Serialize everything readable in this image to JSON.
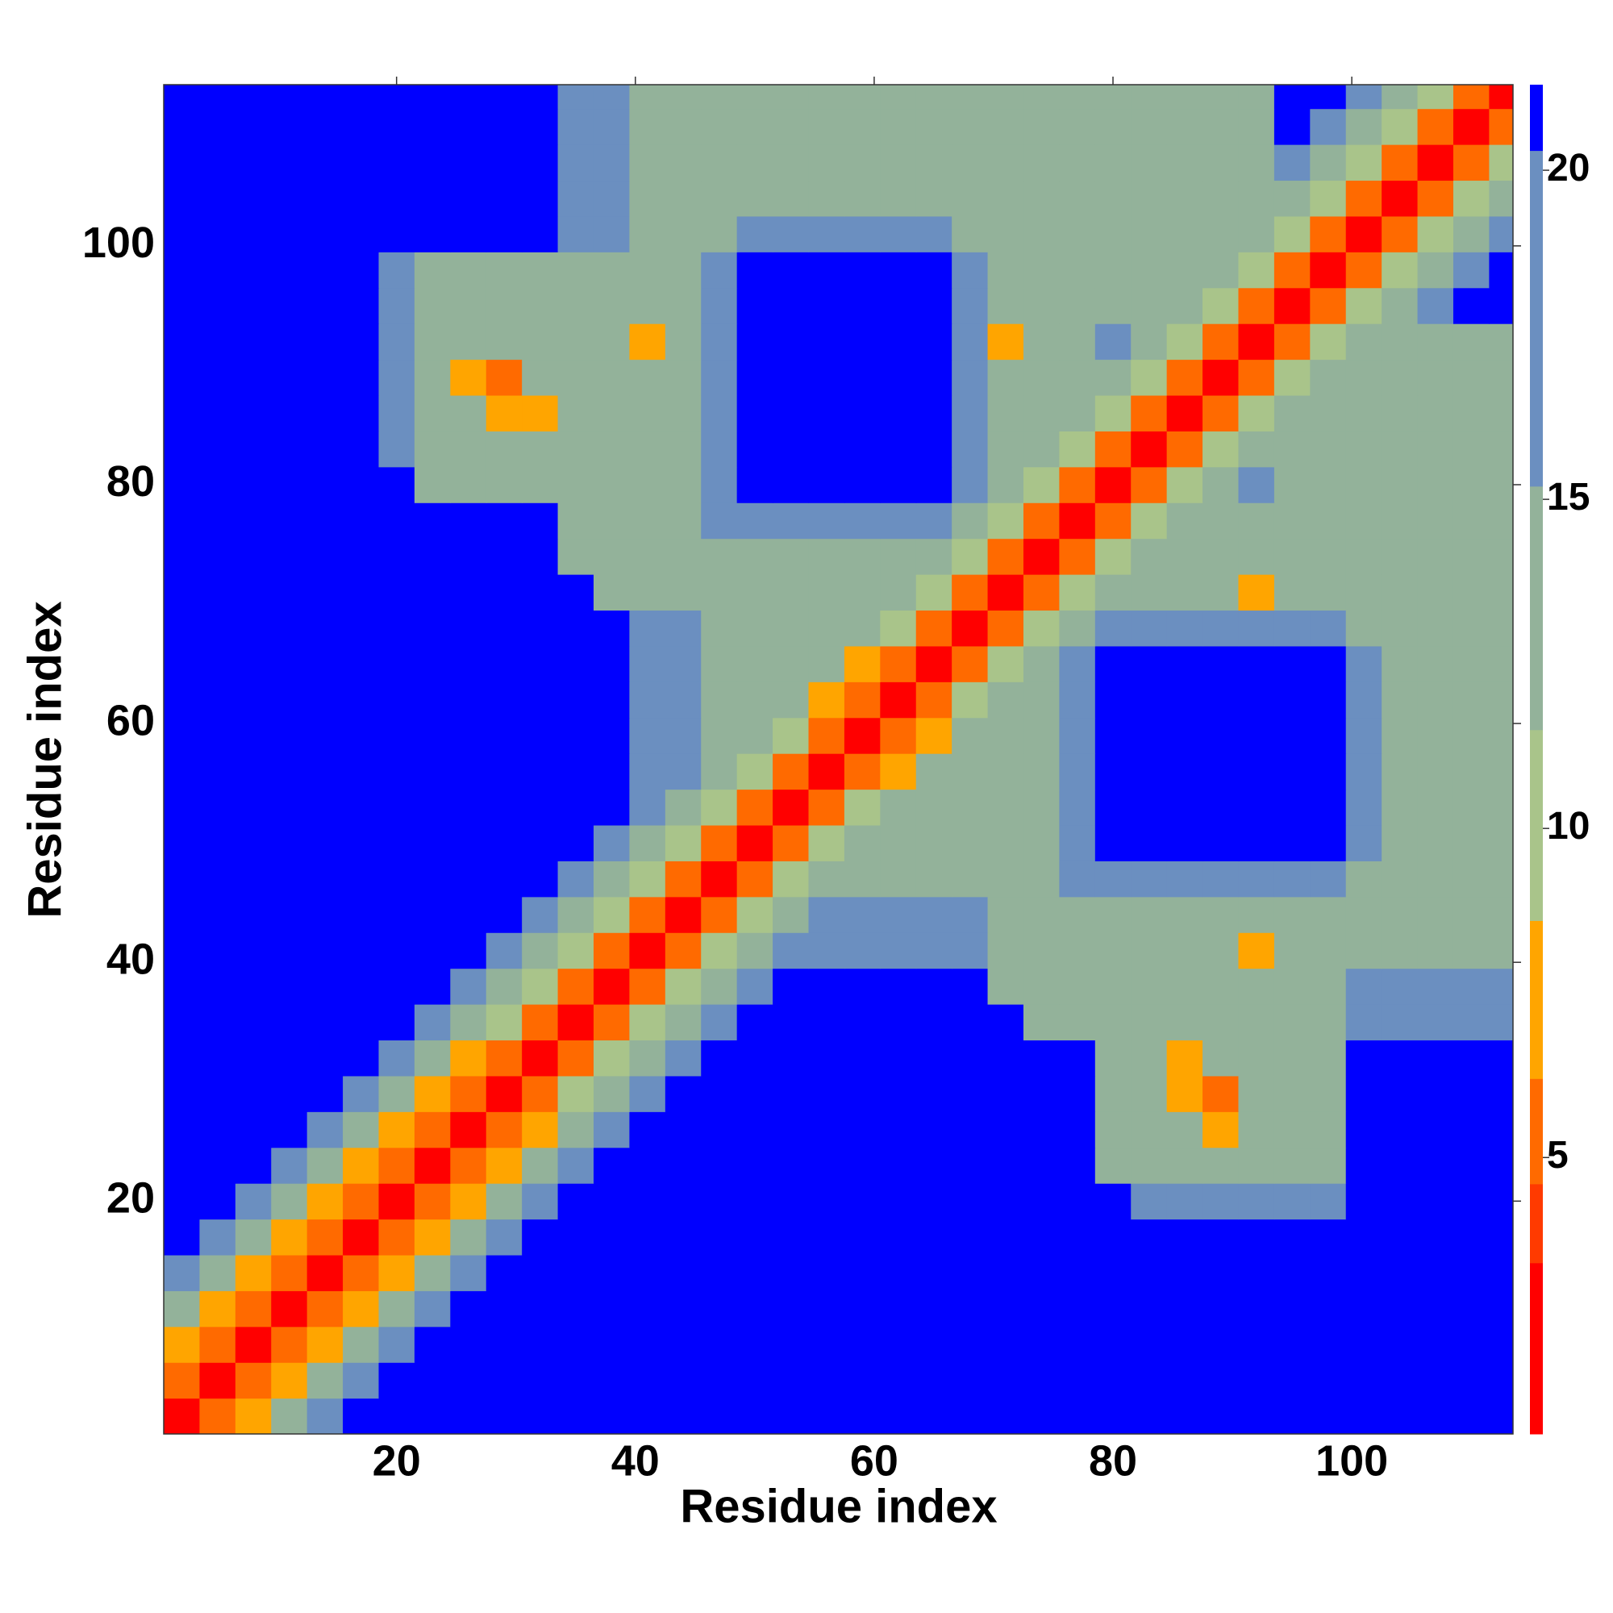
{
  "chart_data": {
    "type": "heatmap",
    "xlabel": "Residue index",
    "ylabel": "Residue index",
    "xlim": [
      0.5,
      113.5
    ],
    "ylim": [
      0.5,
      113.5
    ],
    "xticks": [
      20,
      40,
      60,
      80,
      100
    ],
    "yticks": [
      20,
      40,
      60,
      80,
      100
    ],
    "clim": [
      0.8,
      21.3
    ],
    "colorbar_ticks": [
      5,
      10,
      15,
      20
    ],
    "colorscale": [
      {
        "value": 0.8,
        "color": "#ff0000"
      },
      {
        "value": 3.4,
        "color": "#ff3a00"
      },
      {
        "value": 4.6,
        "color": "#ff6a00"
      },
      {
        "value": 6.2,
        "color": "#ffa500"
      },
      {
        "value": 8.6,
        "color": "#a9c48a"
      },
      {
        "value": 11.5,
        "color": "#93b29a"
      },
      {
        "value": 15.2,
        "color": "#6b8fc0"
      },
      {
        "value": 20.3,
        "color": "#0000ff"
      }
    ],
    "x": [
      2,
      5,
      8,
      11,
      14,
      17,
      20,
      23,
      26,
      29,
      32,
      35,
      38,
      41,
      44,
      47,
      50,
      53,
      56,
      59,
      62,
      65,
      68,
      71,
      74,
      77,
      80,
      83,
      86,
      89,
      92,
      95,
      98,
      101,
      104,
      107,
      110,
      113
    ],
    "y": [
      2,
      5,
      8,
      11,
      14,
      17,
      20,
      23,
      26,
      29,
      32,
      35,
      38,
      41,
      44,
      47,
      50,
      53,
      56,
      59,
      62,
      65,
      68,
      71,
      74,
      77,
      80,
      83,
      86,
      89,
      92,
      95,
      98,
      101,
      104,
      107,
      110,
      113
    ],
    "z": [
      [
        2,
        5,
        8.5,
        12,
        16,
        21,
        21,
        21,
        21,
        21,
        21,
        21,
        21,
        21,
        21,
        21,
        21,
        21,
        21,
        21,
        21,
        21,
        21,
        21,
        21,
        21,
        21,
        21,
        21,
        21,
        21,
        21,
        21,
        21,
        21,
        21,
        21,
        21
      ],
      [
        5,
        2,
        5,
        8.5,
        12,
        16,
        21,
        21,
        21,
        21,
        21,
        21,
        21,
        21,
        21,
        21,
        21,
        21,
        21,
        21,
        21,
        21,
        21,
        21,
        21,
        21,
        21,
        21,
        21,
        21,
        21,
        21,
        21,
        21,
        21,
        21,
        21,
        21
      ],
      [
        8.5,
        5,
        2,
        5,
        8.5,
        12,
        16,
        21,
        21,
        21,
        21,
        21,
        21,
        21,
        21,
        21,
        21,
        21,
        21,
        21,
        21,
        21,
        21,
        21,
        21,
        21,
        21,
        21,
        21,
        21,
        21,
        21,
        21,
        21,
        21,
        21,
        21,
        21
      ],
      [
        12,
        8.5,
        5,
        2,
        5,
        8.5,
        12,
        16,
        21,
        21,
        21,
        21,
        21,
        21,
        21,
        21,
        21,
        21,
        21,
        21,
        21,
        21,
        21,
        21,
        21,
        21,
        21,
        21,
        21,
        21,
        21,
        21,
        21,
        21,
        21,
        21,
        21,
        21
      ],
      [
        16,
        12,
        8.5,
        5,
        2,
        5,
        8.5,
        12,
        16,
        21,
        21,
        21,
        21,
        21,
        21,
        21,
        21,
        21,
        21,
        21,
        21,
        21,
        21,
        21,
        21,
        21,
        21,
        21,
        21,
        21,
        21,
        21,
        21,
        21,
        21,
        21,
        21,
        21
      ],
      [
        21,
        16,
        12,
        8.5,
        5,
        2,
        5,
        8.5,
        12,
        16,
        21,
        21,
        21,
        21,
        21,
        21,
        21,
        21,
        21,
        21,
        21,
        21,
        21,
        21,
        21,
        21,
        21,
        21,
        21,
        21,
        21,
        21,
        21,
        21,
        21,
        21,
        21,
        21
      ],
      [
        21,
        21,
        16,
        12,
        8.5,
        5,
        2,
        5,
        8.5,
        12,
        16,
        21,
        21,
        21,
        21,
        21,
        21,
        21,
        21,
        21,
        21,
        21,
        21,
        21,
        21,
        21,
        21,
        17,
        17,
        17,
        17,
        17,
        17,
        21,
        21,
        21,
        21,
        21
      ],
      [
        21,
        21,
        21,
        16,
        12,
        8.5,
        5,
        2,
        5,
        8.5,
        12,
        16,
        21,
        21,
        21,
        21,
        21,
        21,
        21,
        21,
        21,
        21,
        21,
        21,
        21,
        21,
        13,
        13,
        13,
        13,
        13,
        13,
        13,
        21,
        21,
        21,
        21,
        21
      ],
      [
        21,
        21,
        21,
        21,
        16,
        12,
        8.5,
        5,
        2,
        5,
        8.5,
        12,
        16,
        21,
        21,
        21,
        21,
        21,
        21,
        21,
        21,
        21,
        21,
        21,
        21,
        21,
        13,
        13,
        13,
        8,
        13,
        13,
        13,
        21,
        21,
        21,
        21,
        21
      ],
      [
        21,
        21,
        21,
        21,
        21,
        16,
        12,
        8.5,
        5,
        2,
        6,
        10,
        13,
        16,
        21,
        21,
        21,
        21,
        21,
        21,
        21,
        21,
        21,
        21,
        21,
        21,
        13,
        13,
        7,
        6,
        13,
        13,
        13,
        21,
        21,
        21,
        21,
        21
      ],
      [
        21,
        21,
        21,
        21,
        21,
        21,
        16,
        12,
        8.5,
        6,
        2,
        6,
        10,
        13,
        16,
        21,
        21,
        21,
        21,
        21,
        21,
        21,
        21,
        21,
        21,
        21,
        14,
        14,
        8,
        14,
        14,
        14,
        14,
        21,
        21,
        21,
        21,
        21
      ],
      [
        21,
        21,
        21,
        21,
        21,
        21,
        21,
        16,
        12,
        10,
        6,
        2,
        6,
        10,
        13,
        16,
        21,
        21,
        21,
        21,
        21,
        21,
        21,
        21,
        15,
        15,
        15,
        15,
        15,
        15,
        15,
        15,
        15,
        18,
        18,
        18,
        18,
        18
      ],
      [
        21,
        21,
        21,
        21,
        21,
        21,
        21,
        21,
        16,
        13,
        10,
        6,
        2,
        6,
        10,
        13,
        16,
        21,
        21,
        21,
        21,
        21,
        21,
        14,
        14,
        14,
        14,
        14,
        14,
        14,
        14,
        14,
        14,
        18,
        18,
        18,
        18,
        18
      ],
      [
        21,
        21,
        21,
        21,
        21,
        21,
        21,
        21,
        21,
        16,
        13,
        10,
        6,
        2,
        6,
        10,
        13,
        16,
        17,
        17,
        17,
        17,
        17,
        13,
        13,
        13,
        13,
        13,
        13,
        13,
        8,
        13,
        13,
        14,
        14,
        14,
        14,
        14
      ],
      [
        21,
        21,
        21,
        21,
        21,
        21,
        21,
        21,
        21,
        21,
        16,
        13,
        10,
        6,
        2,
        6,
        10,
        13,
        16,
        17,
        17,
        17,
        17,
        13,
        13,
        13,
        13,
        13,
        13,
        13,
        13,
        13,
        13,
        14,
        14,
        14,
        14,
        14
      ],
      [
        21,
        21,
        21,
        21,
        21,
        21,
        21,
        21,
        21,
        21,
        21,
        16,
        13,
        10,
        6,
        2,
        6,
        10,
        13,
        15,
        15,
        15,
        15,
        15,
        15,
        18,
        18,
        18,
        18,
        18,
        18,
        18,
        18,
        14,
        14,
        14,
        14,
        14
      ],
      [
        21,
        21,
        21,
        21,
        21,
        21,
        21,
        21,
        21,
        21,
        21,
        21,
        16,
        13,
        10,
        6,
        2,
        6,
        10,
        13,
        15,
        15,
        15,
        15,
        15,
        18,
        21,
        21,
        21,
        21,
        21,
        21,
        21,
        16,
        14,
        14,
        14,
        14
      ],
      [
        21,
        21,
        21,
        21,
        21,
        21,
        21,
        21,
        21,
        21,
        21,
        21,
        21,
        16,
        13,
        10,
        6,
        2,
        6,
        10,
        13,
        15,
        15,
        15,
        15,
        18,
        21,
        21,
        21,
        21,
        21,
        21,
        21,
        16,
        14,
        14,
        14,
        14
      ],
      [
        21,
        21,
        21,
        21,
        21,
        21,
        21,
        21,
        21,
        21,
        21,
        21,
        21,
        17,
        16,
        13,
        10,
        6,
        2,
        6,
        7,
        13,
        15,
        15,
        15,
        18,
        21,
        21,
        21,
        21,
        21,
        21,
        21,
        16,
        14,
        14,
        14,
        14
      ],
      [
        21,
        21,
        21,
        21,
        21,
        21,
        21,
        21,
        21,
        21,
        21,
        21,
        21,
        17,
        17,
        15,
        13,
        10,
        6,
        2,
        6,
        7,
        13,
        15,
        15,
        18,
        21,
        21,
        21,
        21,
        21,
        21,
        21,
        16,
        14,
        14,
        14,
        14
      ],
      [
        21,
        21,
        21,
        21,
        21,
        21,
        21,
        21,
        21,
        21,
        21,
        21,
        21,
        17,
        17,
        15,
        15,
        13,
        7,
        6,
        2,
        6,
        10,
        13,
        15,
        18,
        21,
        21,
        21,
        21,
        21,
        21,
        21,
        16,
        14,
        14,
        14,
        14
      ],
      [
        21,
        21,
        21,
        21,
        21,
        21,
        21,
        21,
        21,
        21,
        21,
        21,
        21,
        17,
        17,
        15,
        15,
        15,
        13,
        7,
        6,
        2,
        6,
        10,
        13,
        16,
        21,
        21,
        21,
        21,
        21,
        21,
        21,
        16,
        13,
        13,
        13,
        13
      ],
      [
        21,
        21,
        21,
        21,
        21,
        21,
        21,
        21,
        21,
        21,
        21,
        21,
        21,
        17,
        17,
        15,
        15,
        15,
        15,
        13,
        10,
        6,
        2,
        6,
        10,
        13,
        16,
        18,
        18,
        18,
        18,
        18,
        18,
        13,
        13,
        13,
        13,
        13
      ],
      [
        21,
        21,
        21,
        21,
        21,
        21,
        21,
        21,
        21,
        21,
        21,
        21,
        14,
        13,
        13,
        15,
        15,
        15,
        15,
        15,
        13,
        10,
        6,
        2,
        6,
        10,
        13,
        13,
        13,
        13,
        7,
        13,
        13,
        13,
        13,
        13,
        13,
        13
      ],
      [
        21,
        21,
        21,
        21,
        21,
        21,
        21,
        21,
        21,
        21,
        21,
        15,
        14,
        13,
        13,
        15,
        15,
        15,
        15,
        15,
        15,
        13,
        10,
        6,
        2,
        6,
        10,
        13,
        13,
        13,
        13,
        13,
        13,
        13,
        13,
        13,
        13,
        13
      ],
      [
        21,
        21,
        21,
        21,
        21,
        21,
        21,
        21,
        21,
        21,
        21,
        15,
        14,
        13,
        13,
        18,
        18,
        18,
        18,
        18,
        18,
        16,
        13,
        10,
        6,
        2,
        6,
        10,
        13,
        13,
        13,
        13,
        13,
        13,
        13,
        13,
        13,
        13
      ],
      [
        21,
        21,
        21,
        21,
        21,
        21,
        21,
        13,
        13,
        13,
        14,
        15,
        14,
        13,
        13,
        18,
        21,
        21,
        21,
        21,
        21,
        21,
        16,
        13,
        10,
        6,
        2,
        6,
        10,
        13,
        16,
        15,
        15,
        15,
        15,
        15,
        15,
        15
      ],
      [
        21,
        21,
        21,
        21,
        21,
        21,
        17,
        13,
        13,
        13,
        14,
        15,
        14,
        13,
        13,
        18,
        21,
        21,
        21,
        21,
        21,
        21,
        18,
        13,
        13,
        10,
        6,
        2,
        6,
        10,
        13,
        15,
        15,
        15,
        15,
        15,
        15,
        15
      ],
      [
        21,
        21,
        21,
        21,
        21,
        21,
        17,
        13,
        13,
        7,
        8,
        15,
        14,
        13,
        13,
        18,
        21,
        21,
        21,
        21,
        21,
        21,
        18,
        13,
        13,
        13,
        10,
        6,
        2,
        6,
        10,
        13,
        15,
        15,
        15,
        15,
        15,
        15
      ],
      [
        21,
        21,
        21,
        21,
        21,
        21,
        17,
        13,
        8,
        6,
        14,
        15,
        14,
        13,
        13,
        18,
        21,
        21,
        21,
        21,
        21,
        21,
        18,
        13,
        13,
        13,
        13,
        10,
        6,
        2,
        6,
        10,
        13,
        15,
        15,
        15,
        15,
        15
      ],
      [
        21,
        21,
        21,
        21,
        21,
        21,
        17,
        13,
        13,
        13,
        14,
        15,
        14,
        8,
        13,
        18,
        21,
        21,
        21,
        21,
        21,
        21,
        18,
        7,
        13,
        13,
        16,
        13,
        10,
        6,
        2,
        6,
        10,
        13,
        15,
        15,
        15,
        15
      ],
      [
        21,
        21,
        21,
        21,
        21,
        21,
        17,
        13,
        13,
        13,
        14,
        15,
        14,
        13,
        13,
        18,
        21,
        21,
        21,
        21,
        21,
        21,
        18,
        13,
        13,
        13,
        15,
        15,
        13,
        10,
        6,
        2,
        6,
        10,
        13,
        16,
        21,
        21
      ],
      [
        21,
        21,
        21,
        21,
        21,
        21,
        17,
        13,
        13,
        13,
        14,
        15,
        14,
        13,
        13,
        18,
        21,
        21,
        21,
        21,
        21,
        21,
        18,
        13,
        13,
        13,
        15,
        15,
        15,
        13,
        10,
        6,
        2,
        6,
        10,
        13,
        16,
        21
      ],
      [
        21,
        21,
        21,
        21,
        21,
        21,
        21,
        21,
        21,
        21,
        21,
        18,
        18,
        14,
        14,
        14,
        16,
        16,
        16,
        16,
        16,
        16,
        13,
        13,
        13,
        13,
        15,
        15,
        15,
        15,
        13,
        10,
        6,
        2,
        6,
        10,
        13,
        16
      ],
      [
        21,
        21,
        21,
        21,
        21,
        21,
        21,
        21,
        21,
        21,
        21,
        18,
        18,
        14,
        14,
        14,
        14,
        14,
        14,
        14,
        14,
        13,
        13,
        13,
        13,
        13,
        15,
        15,
        15,
        15,
        15,
        13,
        10,
        6,
        2,
        6,
        10,
        13
      ],
      [
        21,
        21,
        21,
        21,
        21,
        21,
        21,
        21,
        21,
        21,
        21,
        18,
        18,
        14,
        14,
        14,
        14,
        14,
        14,
        14,
        14,
        13,
        13,
        13,
        13,
        13,
        15,
        15,
        15,
        15,
        15,
        16,
        13,
        10,
        6,
        2,
        6,
        10
      ],
      [
        21,
        21,
        21,
        21,
        21,
        21,
        21,
        21,
        21,
        21,
        21,
        18,
        18,
        14,
        14,
        14,
        14,
        14,
        14,
        14,
        14,
        13,
        13,
        13,
        13,
        13,
        15,
        15,
        15,
        15,
        15,
        21,
        16,
        13,
        10,
        6,
        2,
        6
      ],
      [
        21,
        21,
        21,
        21,
        21,
        21,
        21,
        21,
        21,
        21,
        21,
        18,
        18,
        14,
        14,
        14,
        14,
        14,
        14,
        14,
        14,
        13,
        13,
        13,
        13,
        13,
        15,
        15,
        15,
        15,
        15,
        21,
        21,
        16,
        13,
        10,
        6,
        2
      ]
    ]
  }
}
